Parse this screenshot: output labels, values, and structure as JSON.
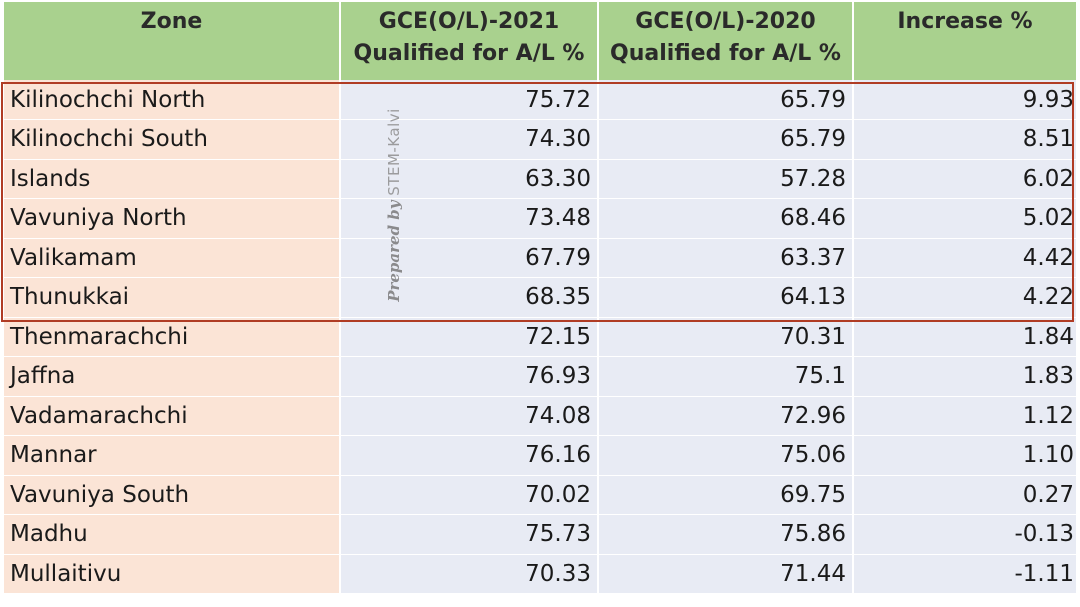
{
  "header": {
    "zone": "Zone",
    "col2021_line1": "GCE(O/L)-2021",
    "col2021_line2": "Qualified for A/L  %",
    "col2020_line1": "GCE(O/L)-2020",
    "col2020_line2": "Qualified for A/L  %",
    "increase": "Increase %"
  },
  "rows": [
    {
      "zone": "Kilinochchi North",
      "y2021": "75.72",
      "y2020": "65.79",
      "inc": "9.93"
    },
    {
      "zone": "Kilinochchi South",
      "y2021": "74.30",
      "y2020": "65.79",
      "inc": "8.51"
    },
    {
      "zone": "Islands",
      "y2021": "63.30",
      "y2020": "57.28",
      "inc": "6.02"
    },
    {
      "zone": "Vavuniya North",
      "y2021": "73.48",
      "y2020": "68.46",
      "inc": "5.02"
    },
    {
      "zone": "Valikamam",
      "y2021": "67.79",
      "y2020": "63.37",
      "inc": "4.42"
    },
    {
      "zone": "Thunukkai",
      "y2021": "68.35",
      "y2020": "64.13",
      "inc": "4.22"
    },
    {
      "zone": "Thenmarachchi",
      "y2021": "72.15",
      "y2020": "70.31",
      "inc": "1.84"
    },
    {
      "zone": "Jaffna",
      "y2021": "76.93",
      "y2020": "75.1",
      "inc": "1.83"
    },
    {
      "zone": "Vadamarachchi",
      "y2021": "74.08",
      "y2020": "72.96",
      "inc": "1.12"
    },
    {
      "zone": "Mannar",
      "y2021": "76.16",
      "y2020": "75.06",
      "inc": "1.10"
    },
    {
      "zone": "Vavuniya South",
      "y2021": "70.02",
      "y2020": "69.75",
      "inc": "0.27"
    },
    {
      "zone": "Madhu",
      "y2021": "75.73",
      "y2020": "75.86",
      "inc": "-0.13"
    },
    {
      "zone": "Mullaitivu",
      "y2021": "70.33",
      "y2020": "71.44",
      "inc": "-1.11"
    }
  ],
  "watermark": {
    "signature": "Prepared by",
    "brand": "STEM-Kalvi"
  },
  "colors": {
    "header_bg": "#a9d18e",
    "zone_col_bg": "#fbe4d6",
    "value_col_bg": "#e8ebf4",
    "highlight_border": "#b03c24"
  }
}
